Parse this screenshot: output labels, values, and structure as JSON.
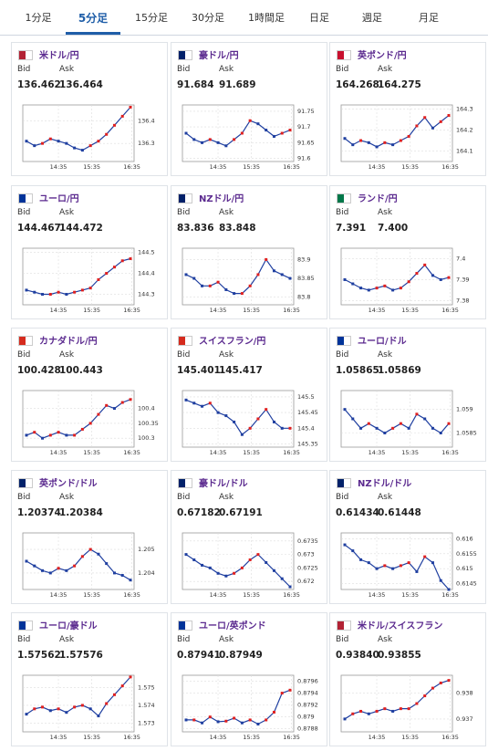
{
  "tabs": [
    "1分足",
    "5分足",
    "15分足",
    "30分足",
    "1時間足",
    "日足",
    "週足",
    "月足"
  ],
  "active_tab": 1,
  "cards": [
    {
      "name": "米ドル/円",
      "bid_label": "Bid",
      "ask_label": "Ask",
      "bid": "136.462",
      "ask": "136.464",
      "chart": {
        "type": "line",
        "values": [
          136.31,
          136.29,
          136.3,
          136.32,
          136.31,
          136.3,
          136.28,
          136.27,
          136.29,
          136.31,
          136.34,
          136.38,
          136.42,
          136.46
        ],
        "ylim": [
          136.22,
          136.47
        ],
        "yticks": [
          136.4,
          136.3
        ],
        "xticks": [
          "14:35",
          "15:35",
          "16:35"
        ]
      }
    },
    {
      "name": "豪ドル/円",
      "bid_label": "Bid",
      "ask_label": "Ask",
      "bid": "91.684",
      "ask": "91.689",
      "chart": {
        "type": "line",
        "values": [
          91.68,
          91.66,
          91.65,
          91.66,
          91.65,
          91.64,
          91.66,
          91.68,
          91.72,
          91.71,
          91.69,
          91.67,
          91.68,
          91.69
        ],
        "ylim": [
          91.59,
          91.77
        ],
        "yticks": [
          91.75,
          91.7,
          91.65,
          91.6
        ],
        "xticks": [
          "14:35",
          "15:35",
          "16:35"
        ]
      }
    },
    {
      "name": "英ポンド/円",
      "bid_label": "Bid",
      "ask_label": "Ask",
      "bid": "164.268",
      "ask": "164.275",
      "chart": {
        "type": "line",
        "values": [
          164.16,
          164.13,
          164.15,
          164.14,
          164.12,
          164.14,
          164.13,
          164.15,
          164.17,
          164.22,
          164.26,
          164.21,
          164.24,
          164.27
        ],
        "ylim": [
          164.05,
          164.32
        ],
        "yticks": [
          164.3,
          164.2,
          164.1
        ],
        "xticks": [
          "14:35",
          "15:35",
          "16:35"
        ]
      }
    },
    {
      "name": "ユーロ/円",
      "bid_label": "Bid",
      "ask_label": "Ask",
      "bid": "144.467",
      "ask": "144.472",
      "chart": {
        "type": "line",
        "values": [
          144.32,
          144.31,
          144.3,
          144.3,
          144.31,
          144.3,
          144.31,
          144.32,
          144.33,
          144.37,
          144.4,
          144.43,
          144.46,
          144.47
        ],
        "ylim": [
          144.25,
          144.52
        ],
        "yticks": [
          144.5,
          144.4,
          144.3
        ],
        "xticks": [
          "14:35",
          "15:35",
          "16:35"
        ]
      }
    },
    {
      "name": "NZドル/円",
      "bid_label": "Bid",
      "ask_label": "Ask",
      "bid": "83.836",
      "ask": "83.848",
      "chart": {
        "type": "line",
        "values": [
          83.86,
          83.85,
          83.83,
          83.83,
          83.84,
          83.82,
          83.81,
          83.81,
          83.83,
          83.86,
          83.9,
          83.87,
          83.86,
          83.85
        ],
        "ylim": [
          83.78,
          83.93
        ],
        "yticks": [
          83.9,
          83.85,
          83.8
        ],
        "xticks": [
          "14:35",
          "15:35",
          "16:35"
        ]
      }
    },
    {
      "name": "ランド/円",
      "bid_label": "Bid",
      "ask_label": "Ask",
      "bid": "7.391",
      "ask": "7.400",
      "chart": {
        "type": "line",
        "values": [
          7.39,
          7.388,
          7.386,
          7.385,
          7.386,
          7.387,
          7.385,
          7.386,
          7.389,
          7.393,
          7.397,
          7.392,
          7.39,
          7.391
        ],
        "ylim": [
          7.378,
          7.405
        ],
        "yticks": [
          7.4,
          7.39,
          7.38
        ],
        "xticks": [
          "14:35",
          "15:35",
          "16:35"
        ]
      }
    },
    {
      "name": "カナダドル/円",
      "bid_label": "Bid",
      "ask_label": "Ask",
      "bid": "100.428",
      "ask": "100.443",
      "chart": {
        "type": "line",
        "values": [
          100.31,
          100.32,
          100.3,
          100.31,
          100.32,
          100.31,
          100.31,
          100.33,
          100.35,
          100.38,
          100.41,
          100.4,
          100.42,
          100.43
        ],
        "ylim": [
          100.27,
          100.46
        ],
        "yticks": [
          100.4,
          100.35,
          100.3
        ],
        "xticks": [
          "14:35",
          "15:35",
          "16:35"
        ]
      }
    },
    {
      "name": "スイスフラン/円",
      "bid_label": "Bid",
      "ask_label": "Ask",
      "bid": "145.401",
      "ask": "145.417",
      "chart": {
        "type": "line",
        "values": [
          145.49,
          145.48,
          145.47,
          145.48,
          145.45,
          145.44,
          145.42,
          145.38,
          145.4,
          145.43,
          145.46,
          145.42,
          145.4,
          145.4
        ],
        "ylim": [
          145.34,
          145.52
        ],
        "yticks": [
          145.5,
          145.45,
          145.4,
          145.35
        ],
        "xticks": [
          "14:35",
          "15:35",
          "16:35"
        ]
      }
    },
    {
      "name": "ユーロ/ドル",
      "bid_label": "Bid",
      "ask_label": "Ask",
      "bid": "1.05865",
      "ask": "1.05869",
      "chart": {
        "type": "line",
        "values": [
          1.059,
          1.0588,
          1.0586,
          1.0587,
          1.0586,
          1.0585,
          1.0586,
          1.0587,
          1.0586,
          1.0589,
          1.0588,
          1.0586,
          1.0585,
          1.0587
        ],
        "ylim": [
          1.0582,
          1.0594
        ],
        "yticks": [
          1.059,
          1.0585
        ],
        "xticks": [
          "14:35",
          "15:35",
          "16:35"
        ]
      }
    },
    {
      "name": "英ポンド/ドル",
      "bid_label": "Bid",
      "ask_label": "Ask",
      "bid": "1.20374",
      "ask": "1.20384",
      "chart": {
        "type": "line",
        "values": [
          1.2045,
          1.2043,
          1.2041,
          1.204,
          1.2042,
          1.2041,
          1.2043,
          1.2047,
          1.205,
          1.2048,
          1.2044,
          1.204,
          1.2039,
          1.2037
        ],
        "ylim": [
          1.2033,
          1.2057
        ],
        "yticks": [
          1.205,
          1.204
        ],
        "xticks": [
          "14:35",
          "15:35",
          "16:35"
        ]
      }
    },
    {
      "name": "豪ドル/ドル",
      "bid_label": "Bid",
      "ask_label": "Ask",
      "bid": "0.67182",
      "ask": "0.67191",
      "chart": {
        "type": "line",
        "values": [
          0.673,
          0.6728,
          0.6726,
          0.6725,
          0.6723,
          0.6722,
          0.6723,
          0.6725,
          0.6728,
          0.673,
          0.6727,
          0.6724,
          0.6721,
          0.6718
        ],
        "ylim": [
          0.6717,
          0.6738
        ],
        "yticks": [
          0.6735,
          0.673,
          0.6725,
          0.672
        ],
        "xticks": [
          "14:35",
          "15:35",
          "16:35"
        ]
      }
    },
    {
      "name": "NZドル/ドル",
      "bid_label": "Bid",
      "ask_label": "Ask",
      "bid": "0.61434",
      "ask": "0.61448",
      "chart": {
        "type": "line",
        "values": [
          0.6158,
          0.6156,
          0.6153,
          0.6152,
          0.615,
          0.6151,
          0.615,
          0.6151,
          0.6152,
          0.6149,
          0.6154,
          0.6152,
          0.6146,
          0.6143
        ],
        "ylim": [
          0.6143,
          0.6162
        ],
        "yticks": [
          0.616,
          0.6155,
          0.615,
          0.6145
        ],
        "xticks": [
          "14:35",
          "15:35",
          "16:35"
        ]
      }
    },
    {
      "name": "ユーロ/豪ドル",
      "bid_label": "Bid",
      "ask_label": "Ask",
      "bid": "1.57562",
      "ask": "1.57576",
      "chart": {
        "type": "line",
        "values": [
          1.5735,
          1.5738,
          1.5739,
          1.5737,
          1.5738,
          1.5736,
          1.5739,
          1.574,
          1.5738,
          1.5734,
          1.5741,
          1.5746,
          1.5751,
          1.5756
        ],
        "ylim": [
          1.5725,
          1.5757
        ],
        "yticks": [
          1.575,
          1.574,
          1.573
        ],
        "xticks": [
          "14:35",
          "15:35",
          "16:35"
        ]
      }
    },
    {
      "name": "ユーロ/英ポンド",
      "bid_label": "Bid",
      "ask_label": "Ask",
      "bid": "0.87941",
      "ask": "0.87949",
      "chart": {
        "type": "line",
        "values": [
          0.87895,
          0.87895,
          0.8789,
          0.879,
          0.87892,
          0.87893,
          0.87898,
          0.8789,
          0.87895,
          0.87888,
          0.87895,
          0.87908,
          0.8794,
          0.87945
        ],
        "ylim": [
          0.87875,
          0.8797
        ],
        "yticks": [
          0.8796,
          0.8794,
          0.8792,
          0.879,
          0.8788
        ],
        "xticks": [
          "14:35",
          "15:35",
          "16:35"
        ]
      }
    },
    {
      "name": "米ドル/スイスフラン",
      "bid_label": "Bid",
      "ask_label": "Ask",
      "bid": "0.93840",
      "ask": "0.93855",
      "chart": {
        "type": "line",
        "values": [
          0.937,
          0.9372,
          0.9373,
          0.9372,
          0.9373,
          0.9374,
          0.9373,
          0.9374,
          0.9374,
          0.9376,
          0.9379,
          0.9382,
          0.9384,
          0.9385
        ],
        "ylim": [
          0.9365,
          0.9387
        ],
        "yticks": [
          0.938,
          0.937
        ],
        "xticks": [
          "14:35",
          "15:35",
          "16:35"
        ]
      }
    }
  ]
}
